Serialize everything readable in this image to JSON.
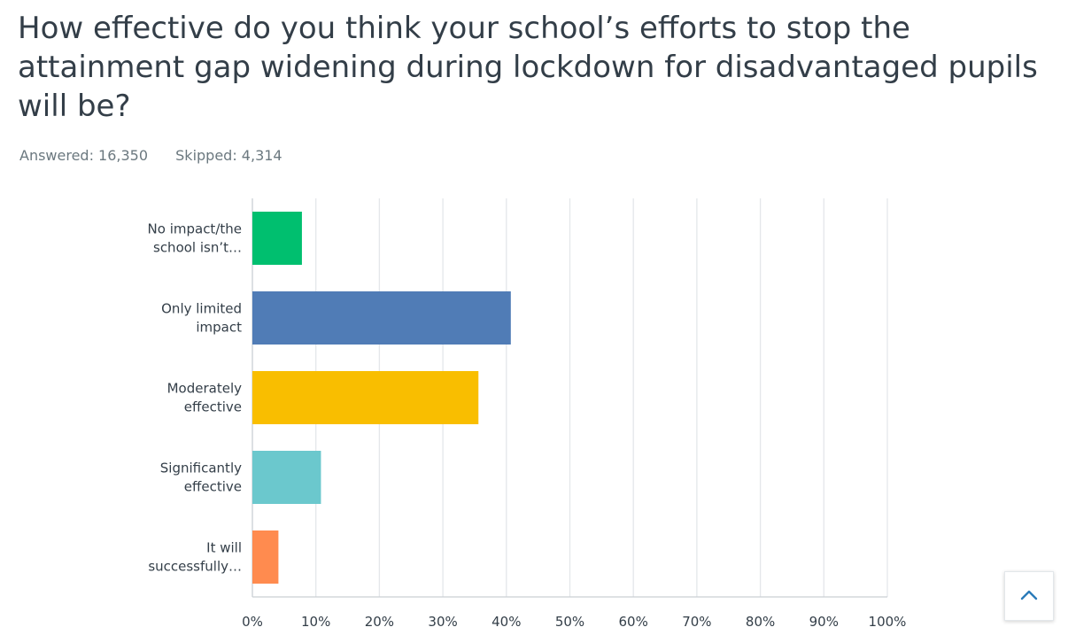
{
  "question": {
    "title": "How effective do you think your school’s efforts to stop the attainment gap widening during lockdown for disadvantaged pupils will be?",
    "answered": "Answered: 16,350",
    "skipped": "Skipped: 4,314"
  },
  "chart_data": {
    "type": "bar",
    "orientation": "horizontal",
    "categories": [
      [
        "No impact/the",
        "school isn’t…"
      ],
      [
        "Only limited",
        "impact"
      ],
      [
        "Moderately",
        "effective"
      ],
      [
        "Significantly",
        "effective"
      ],
      [
        "It will",
        "successfully…"
      ]
    ],
    "values": [
      7.8,
      40.7,
      35.6,
      10.8,
      4.1
    ],
    "colors": [
      "#00bf6f",
      "#507cb6",
      "#f9be00",
      "#6bc8cd",
      "#ff8b4f"
    ],
    "xlim": [
      0,
      100
    ],
    "xticks": [
      "0%",
      "10%",
      "20%",
      "30%",
      "40%",
      "50%",
      "60%",
      "70%",
      "80%",
      "90%",
      "100%"
    ],
    "grid": true,
    "xlabel": "",
    "ylabel": ""
  },
  "ui": {
    "scroll_top_icon": "chevron-up-icon",
    "accent": "#2b7bb9"
  }
}
